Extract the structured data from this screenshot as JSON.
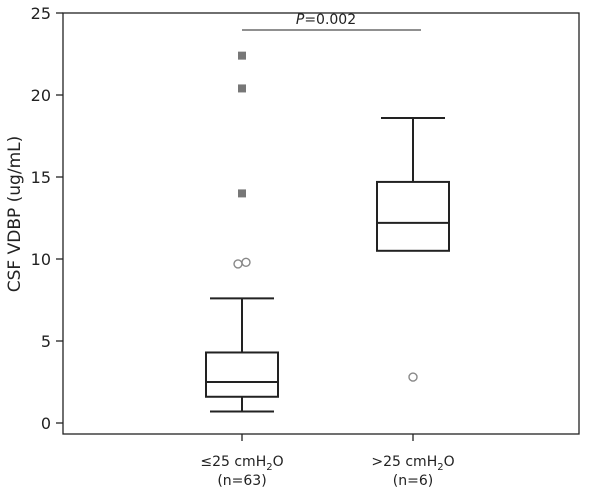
{
  "chart_data": {
    "type": "box",
    "ylabel": "CSF VDBP (ug/mL)",
    "ylim": [
      0,
      25
    ],
    "yticks": [
      0,
      5,
      10,
      15,
      20,
      25
    ],
    "grid": false,
    "groups": [
      {
        "label": "≤25 cmH",
        "sub": "2",
        "label_tail": "O",
        "n_label": "(n=63)",
        "whisker_low": 0.7,
        "q1": 1.6,
        "median": 2.5,
        "q3": 4.3,
        "whisker_high": 7.6,
        "outliers_circle": [
          9.7,
          9.8
        ],
        "outliers_square": [
          14.0,
          20.4,
          22.4
        ]
      },
      {
        "label": ">25 cmH",
        "sub": "2",
        "label_tail": "O",
        "n_label": "(n=6)",
        "whisker_low": 10.5,
        "q1": 10.5,
        "median": 12.2,
        "q3": 14.7,
        "whisker_high": 18.6,
        "outliers_circle": [
          2.8
        ],
        "outliers_square": []
      }
    ],
    "significance": {
      "p_italic": "P",
      "p_rest": "=0.002"
    }
  }
}
